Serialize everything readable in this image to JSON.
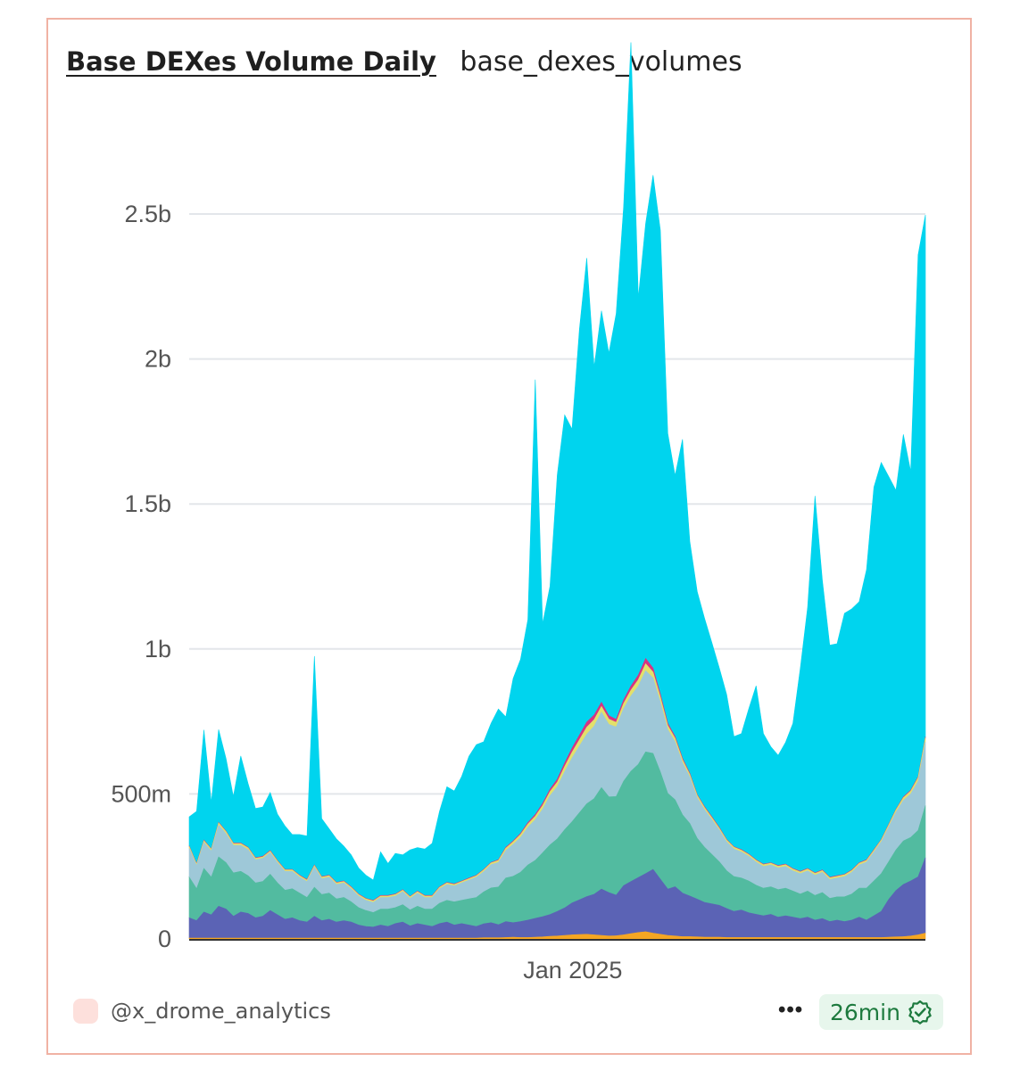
{
  "header": {
    "title": "Base DEXes Volume Daily",
    "subtitle": "base_dexes_volumes"
  },
  "footer": {
    "username": "@x_drome_analytics",
    "more_label": "•••",
    "freshness": "26min",
    "avatar_color": "#fde0dc",
    "badge_icon": "verified-check-icon"
  },
  "colors": {
    "border": "#f0b2a4",
    "freshness_bg": "#e7f6ec",
    "freshness_text": "#1d7a3e"
  },
  "chart_data": {
    "type": "area",
    "stacked": true,
    "y_ticks": [
      "0",
      "500m",
      "1b",
      "1.5b",
      "2b",
      "2.5b"
    ],
    "y_tick_values": [
      0,
      500000000,
      1000000000,
      1500000000,
      2000000000,
      2500000000
    ],
    "ylim": [
      0,
      2900000000
    ],
    "x_ticks": [
      "Jan 2025"
    ],
    "x_tick_positions": [
      0.521
    ],
    "grid": true,
    "legend": "none",
    "series_colors": [
      "#f5a623",
      "#5b63b5",
      "#52bba0",
      "#9ec8d8",
      "#e3e06a",
      "#d63384",
      "#00d4ee"
    ],
    "x": [
      0,
      0.01,
      0.02,
      0.03,
      0.04,
      0.05,
      0.06,
      0.07,
      0.08,
      0.09,
      0.1,
      0.11,
      0.12,
      0.13,
      0.14,
      0.15,
      0.16,
      0.17,
      0.18,
      0.19,
      0.2,
      0.21,
      0.22,
      0.23,
      0.24,
      0.25,
      0.26,
      0.27,
      0.28,
      0.29,
      0.3,
      0.31,
      0.32,
      0.33,
      0.34,
      0.35,
      0.36,
      0.37,
      0.38,
      0.39,
      0.4,
      0.41,
      0.42,
      0.43,
      0.44,
      0.45,
      0.46,
      0.47,
      0.48,
      0.49,
      0.5,
      0.51,
      0.52,
      0.53,
      0.54,
      0.55,
      0.56,
      0.57,
      0.58,
      0.59,
      0.6,
      0.61,
      0.62,
      0.63,
      0.64,
      0.65,
      0.66,
      0.67,
      0.68,
      0.69,
      0.7,
      0.71,
      0.72,
      0.73,
      0.74,
      0.75,
      0.76,
      0.77,
      0.78,
      0.79,
      0.8,
      0.81,
      0.82,
      0.83,
      0.84,
      0.85,
      0.86,
      0.87,
      0.88,
      0.89,
      0.9,
      0.91,
      0.92,
      0.93,
      0.94,
      0.95,
      0.96,
      0.97,
      0.98,
      0.99,
      1
    ],
    "series": [
      {
        "color": "#f5a623",
        "values": [
          3,
          3,
          3,
          3,
          3,
          3,
          3,
          3,
          3,
          3,
          3,
          3,
          3,
          3,
          3,
          3,
          3,
          3,
          3,
          3,
          3,
          3,
          3,
          3,
          3,
          3,
          3,
          3,
          3,
          3,
          3,
          3,
          3,
          3,
          3,
          3,
          3,
          3,
          3,
          3,
          4,
          4,
          4,
          5,
          6,
          5,
          5,
          6,
          7,
          9,
          10,
          12,
          14,
          15,
          16,
          14,
          12,
          10,
          11,
          14,
          18,
          22,
          25,
          20,
          16,
          12,
          10,
          8,
          8,
          7,
          6,
          6,
          6,
          5,
          5,
          5,
          5,
          5,
          5,
          5,
          5,
          5,
          5,
          5,
          5,
          5,
          5,
          5,
          5,
          5,
          5,
          5,
          5,
          5,
          5,
          6,
          7,
          8,
          10,
          14,
          20
        ]
      },
      {
        "color": "#5b63b5",
        "values": [
          70,
          60,
          90,
          80,
          110,
          100,
          75,
          90,
          85,
          70,
          75,
          95,
          80,
          65,
          70,
          60,
          55,
          75,
          60,
          65,
          55,
          60,
          55,
          45,
          40,
          38,
          45,
          40,
          50,
          55,
          42,
          50,
          45,
          40,
          50,
          55,
          45,
          50,
          45,
          40,
          48,
          52,
          45,
          55,
          50,
          55,
          60,
          65,
          70,
          75,
          85,
          95,
          110,
          120,
          130,
          140,
          160,
          150,
          140,
          170,
          180,
          190,
          200,
          220,
          190,
          160,
          170,
          150,
          140,
          130,
          120,
          115,
          110,
          100,
          90,
          95,
          85,
          80,
          75,
          80,
          70,
          75,
          70,
          65,
          70,
          60,
          65,
          55,
          60,
          55,
          60,
          70,
          60,
          75,
          90,
          130,
          160,
          180,
          190,
          200,
          260
        ]
      },
      {
        "color": "#52bba0",
        "values": [
          140,
          110,
          150,
          130,
          170,
          160,
          150,
          140,
          130,
          120,
          120,
          125,
          110,
          100,
          100,
          95,
          85,
          100,
          90,
          90,
          80,
          80,
          70,
          60,
          55,
          50,
          55,
          60,
          55,
          60,
          55,
          60,
          55,
          60,
          70,
          75,
          80,
          80,
          90,
          100,
          110,
          120,
          130,
          150,
          160,
          170,
          190,
          200,
          220,
          240,
          250,
          270,
          280,
          300,
          320,
          330,
          350,
          330,
          340,
          360,
          380,
          390,
          420,
          400,
          370,
          330,
          300,
          270,
          250,
          210,
          190,
          170,
          150,
          130,
          120,
          110,
          110,
          100,
          95,
          95,
          95,
          95,
          90,
          85,
          90,
          85,
          90,
          80,
          80,
          85,
          90,
          100,
          110,
          120,
          130,
          130,
          140,
          150,
          150,
          160,
          180
        ]
      },
      {
        "color": "#9ec8d8",
        "values": [
          100,
          80,
          90,
          90,
          110,
          100,
          95,
          90,
          90,
          80,
          80,
          75,
          70,
          65,
          60,
          55,
          55,
          70,
          55,
          55,
          50,
          50,
          45,
          40,
          35,
          35,
          40,
          40,
          40,
          45,
          40,
          45,
          40,
          40,
          50,
          55,
          55,
          60,
          65,
          70,
          70,
          80,
          85,
          95,
          110,
          120,
          130,
          140,
          150,
          170,
          180,
          200,
          220,
          230,
          240,
          250,
          260,
          250,
          240,
          250,
          260,
          270,
          280,
          260,
          240,
          220,
          200,
          180,
          160,
          140,
          130,
          120,
          110,
          100,
          95,
          90,
          85,
          80,
          75,
          75,
          75,
          75,
          70,
          70,
          70,
          70,
          70,
          65,
          65,
          70,
          75,
          80,
          90,
          100,
          110,
          120,
          130,
          140,
          150,
          170,
          220
        ]
      },
      {
        "color": "#e3e06a",
        "values": [
          6,
          5,
          6,
          6,
          7,
          7,
          6,
          6,
          6,
          5,
          5,
          5,
          5,
          5,
          5,
          5,
          5,
          5,
          5,
          5,
          5,
          5,
          5,
          5,
          5,
          5,
          5,
          5,
          5,
          5,
          5,
          5,
          5,
          5,
          5,
          5,
          5,
          5,
          5,
          5,
          6,
          6,
          7,
          8,
          9,
          10,
          11,
          12,
          13,
          14,
          16,
          18,
          20,
          22,
          24,
          22,
          20,
          18,
          16,
          18,
          20,
          22,
          24,
          20,
          18,
          14,
          12,
          10,
          9,
          8,
          7,
          7,
          6,
          6,
          6,
          6,
          6,
          6,
          6,
          6,
          6,
          6,
          6,
          6,
          6,
          6,
          6,
          6,
          6,
          6,
          6,
          6,
          6,
          6,
          6,
          7,
          8,
          9,
          10,
          12,
          14
        ]
      },
      {
        "color": "#d63384",
        "values": [
          2,
          2,
          2,
          2,
          2,
          2,
          2,
          2,
          2,
          2,
          2,
          2,
          2,
          2,
          2,
          2,
          2,
          2,
          2,
          2,
          2,
          2,
          2,
          2,
          2,
          2,
          2,
          2,
          2,
          2,
          2,
          2,
          2,
          2,
          2,
          2,
          2,
          2,
          2,
          2,
          2,
          2,
          2,
          3,
          3,
          4,
          5,
          6,
          7,
          8,
          10,
          12,
          14,
          16,
          18,
          16,
          14,
          12,
          10,
          12,
          14,
          16,
          18,
          14,
          10,
          8,
          6,
          5,
          4,
          3,
          3,
          3,
          3,
          2,
          2,
          2,
          2,
          2,
          2,
          2,
          2,
          2,
          2,
          2,
          2,
          2,
          2,
          2,
          2,
          2,
          2,
          2,
          2,
          2,
          2,
          2,
          2,
          3,
          3,
          3,
          3
        ]
      },
      {
        "color": "#00d4ee",
        "values": [
          100,
          180,
          380,
          160,
          320,
          250,
          160,
          300,
          220,
          170,
          170,
          200,
          160,
          150,
          120,
          140,
          150,
          720,
          200,
          160,
          150,
          120,
          110,
          90,
          80,
          70,
          150,
          110,
          140,
          120,
          160,
          150,
          160,
          180,
          260,
          330,
          320,
          360,
          420,
          450,
          440,
          480,
          520,
          450,
          560,
          600,
          700,
          1500,
          620,
          700,
          1050,
          1200,
          1100,
          1400,
          1600,
          1200,
          1350,
          1250,
          1400,
          1700,
          2220,
          1300,
          1500,
          1700,
          1600,
          1000,
          900,
          1100,
          800,
          700,
          650,
          600,
          550,
          500,
          380,
          400,
          500,
          600,
          450,
          400,
          380,
          420,
          500,
          700,
          900,
          1300,
          1000,
          800,
          800,
          900,
          900,
          900,
          1000,
          1250,
          1300,
          1200,
          1100,
          1250,
          1100,
          1800,
          1800
        ]
      }
    ]
  }
}
